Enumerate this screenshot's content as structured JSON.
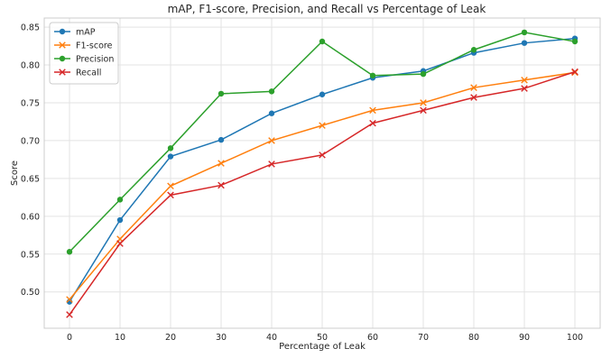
{
  "chart_data": {
    "type": "line",
    "title": "mAP, F1-score, Precision, and Recall vs Percentage of Leak",
    "xlabel": "Percentage of Leak",
    "ylabel": "Score",
    "x": [
      0,
      10,
      20,
      30,
      40,
      50,
      60,
      70,
      80,
      90,
      100
    ],
    "xticks": [
      "0",
      "10",
      "20",
      "30",
      "40",
      "50",
      "60",
      "70",
      "80",
      "90",
      "100"
    ],
    "yticks": [
      "0.50",
      "0.55",
      "0.60",
      "0.65",
      "0.70",
      "0.75",
      "0.80",
      "0.85"
    ],
    "xlim": [
      -5,
      105
    ],
    "ylim": [
      0.452,
      0.862
    ],
    "grid": true,
    "legend_position": "top-left",
    "series": [
      {
        "name": "mAP",
        "marker": "circle",
        "color": "#1f77b4",
        "values": [
          0.487,
          0.595,
          0.679,
          0.701,
          0.736,
          0.761,
          0.783,
          0.792,
          0.816,
          0.829,
          0.835
        ]
      },
      {
        "name": "F1-score",
        "marker": "x",
        "color": "#ff7f0e",
        "values": [
          0.49,
          0.57,
          0.64,
          0.67,
          0.7,
          0.72,
          0.74,
          0.75,
          0.77,
          0.78,
          0.79
        ]
      },
      {
        "name": "Precision",
        "marker": "circle",
        "color": "#2ca02c",
        "values": [
          0.553,
          0.622,
          0.69,
          0.762,
          0.765,
          0.831,
          0.786,
          0.788,
          0.82,
          0.843,
          0.831
        ]
      },
      {
        "name": "Recall",
        "marker": "x",
        "color": "#d62728",
        "values": [
          0.47,
          0.564,
          0.628,
          0.641,
          0.669,
          0.681,
          0.723,
          0.74,
          0.757,
          0.769,
          0.791
        ]
      }
    ]
  }
}
